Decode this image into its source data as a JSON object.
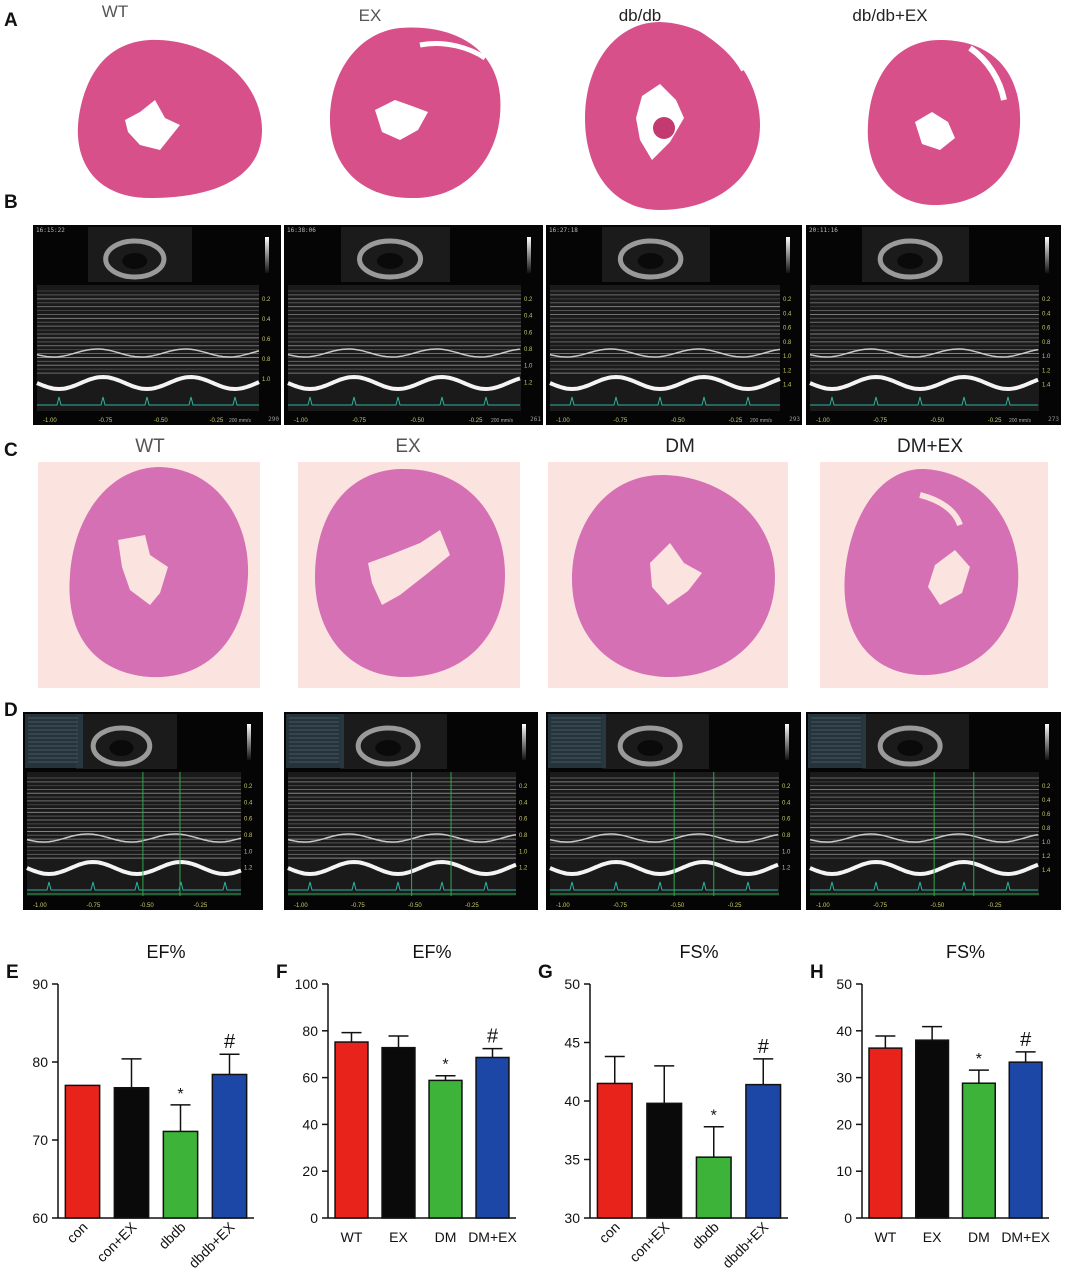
{
  "panels": {
    "a": {
      "letter": "A",
      "labels": [
        "WT",
        "EX",
        "db/db",
        "db/db+EX"
      ]
    },
    "b": {
      "letter": "B",
      "echo": [
        {
          "timestamp": "16:15:22",
          "hr": "290",
          "axis": [
            "0.2",
            "0.4",
            "0.6",
            "0.8",
            "1.0"
          ],
          "time_axis": [
            "-1.00",
            "-0.75",
            "-0.50",
            "-0.25"
          ],
          "speed": "200 mm/s"
        },
        {
          "timestamp": "16:38:06",
          "hr": "261",
          "axis": [
            "0.2",
            "0.4",
            "0.6",
            "0.8",
            "1.0",
            "1.2"
          ],
          "time_axis": [
            "-1.00",
            "-0.75",
            "-0.50",
            "-0.25"
          ],
          "speed": "200 mm/s"
        },
        {
          "timestamp": "16:27:18",
          "hr": "293",
          "axis": [
            "0.2",
            "0.4",
            "0.6",
            "0.8",
            "1.0",
            "1.2",
            "1.4"
          ],
          "time_axis": [
            "-1.00",
            "-0.75",
            "-0.50",
            "-0.25"
          ],
          "speed": "200 mm/s"
        },
        {
          "timestamp": "20:11:16",
          "hr": "273",
          "axis": [
            "0.2",
            "0.4",
            "0.6",
            "0.8",
            "1.0",
            "1.2",
            "1.4"
          ],
          "time_axis": [
            "-1.00",
            "-0.75",
            "-0.50",
            "-0.25"
          ],
          "speed": "200 mm/s"
        }
      ]
    },
    "c": {
      "letter": "C",
      "labels": [
        "WT",
        "EX",
        "DM",
        "DM+EX"
      ]
    },
    "d": {
      "letter": "D",
      "echo": [
        {
          "axis": [
            "0.2",
            "0.4",
            "0.6",
            "0.8",
            "1.0",
            "1.2"
          ],
          "time_axis": [
            "-1.00",
            "-0.75",
            "-0.50",
            "-0.25"
          ]
        },
        {
          "axis": [
            "0.2",
            "0.4",
            "0.6",
            "0.8",
            "1.0",
            "1.2"
          ],
          "time_axis": [
            "-1.00",
            "-0.75",
            "-0.50",
            "-0.25"
          ]
        },
        {
          "axis": [
            "0.2",
            "0.4",
            "0.6",
            "0.8",
            "1.0",
            "1.2"
          ],
          "time_axis": [
            "-1.00",
            "-0.75",
            "-0.50",
            "-0.25"
          ]
        },
        {
          "axis": [
            "0.2",
            "0.4",
            "0.6",
            "0.8",
            "1.0",
            "1.2",
            "1.4"
          ],
          "time_axis": [
            "-1.00",
            "-0.75",
            "-0.50",
            "-0.25"
          ]
        }
      ]
    }
  },
  "colors": {
    "red": "#e8231c",
    "black": "#0a0a0a",
    "green": "#3db33a",
    "blue": "#1c47a6",
    "he_pink": "#d8508a",
    "he_bg": "#fbe3df"
  },
  "chart_data": [
    {
      "letter": "E",
      "type": "bar",
      "title": "EF%",
      "categories": [
        "con",
        "con+EX",
        "dbdb",
        "dbdb+EX"
      ],
      "values": [
        77.0,
        76.7,
        71.1,
        78.4
      ],
      "errors": [
        0.0,
        3.7,
        3.4,
        2.6
      ],
      "marks": [
        "",
        "",
        "*",
        "#"
      ],
      "colors": [
        "#e8231c",
        "#0a0a0a",
        "#3db33a",
        "#1c47a6"
      ],
      "ylim": [
        60,
        90
      ],
      "yticks": [
        60,
        70,
        80,
        90
      ],
      "rotated_labels": true
    },
    {
      "letter": "F",
      "type": "bar",
      "title": "EF%",
      "categories": [
        "WT",
        "EX",
        "DM",
        "DM+EX"
      ],
      "values": [
        75.2,
        72.8,
        58.8,
        68.6
      ],
      "errors": [
        4.0,
        5.0,
        2.0,
        3.8
      ],
      "marks": [
        "",
        "",
        "*",
        "#"
      ],
      "colors": [
        "#e8231c",
        "#0a0a0a",
        "#3db33a",
        "#1c47a6"
      ],
      "ylim": [
        0,
        100
      ],
      "yticks": [
        0,
        20,
        40,
        60,
        80,
        100
      ],
      "rotated_labels": false
    },
    {
      "letter": "G",
      "type": "bar",
      "title": "FS%",
      "categories": [
        "con",
        "con+EX",
        "dbdb",
        "dbdb+EX"
      ],
      "values": [
        41.5,
        39.8,
        35.2,
        41.4
      ],
      "errors": [
        2.3,
        3.2,
        2.6,
        2.2
      ],
      "marks": [
        "",
        "",
        "*",
        "#"
      ],
      "colors": [
        "#e8231c",
        "#0a0a0a",
        "#3db33a",
        "#1c47a6"
      ],
      "ylim": [
        30,
        50
      ],
      "yticks": [
        30,
        35,
        40,
        45,
        50
      ],
      "rotated_labels": true
    },
    {
      "letter": "H",
      "type": "bar",
      "title": "FS%",
      "categories": [
        "WT",
        "EX",
        "DM",
        "DM+EX"
      ],
      "values": [
        36.3,
        38.0,
        28.8,
        33.3
      ],
      "errors": [
        2.6,
        2.9,
        2.8,
        2.2
      ],
      "marks": [
        "",
        "",
        "*",
        "#"
      ],
      "colors": [
        "#e8231c",
        "#0a0a0a",
        "#3db33a",
        "#1c47a6"
      ],
      "ylim": [
        0,
        50
      ],
      "yticks": [
        0,
        10,
        20,
        30,
        40,
        50
      ],
      "rotated_labels": false
    }
  ]
}
